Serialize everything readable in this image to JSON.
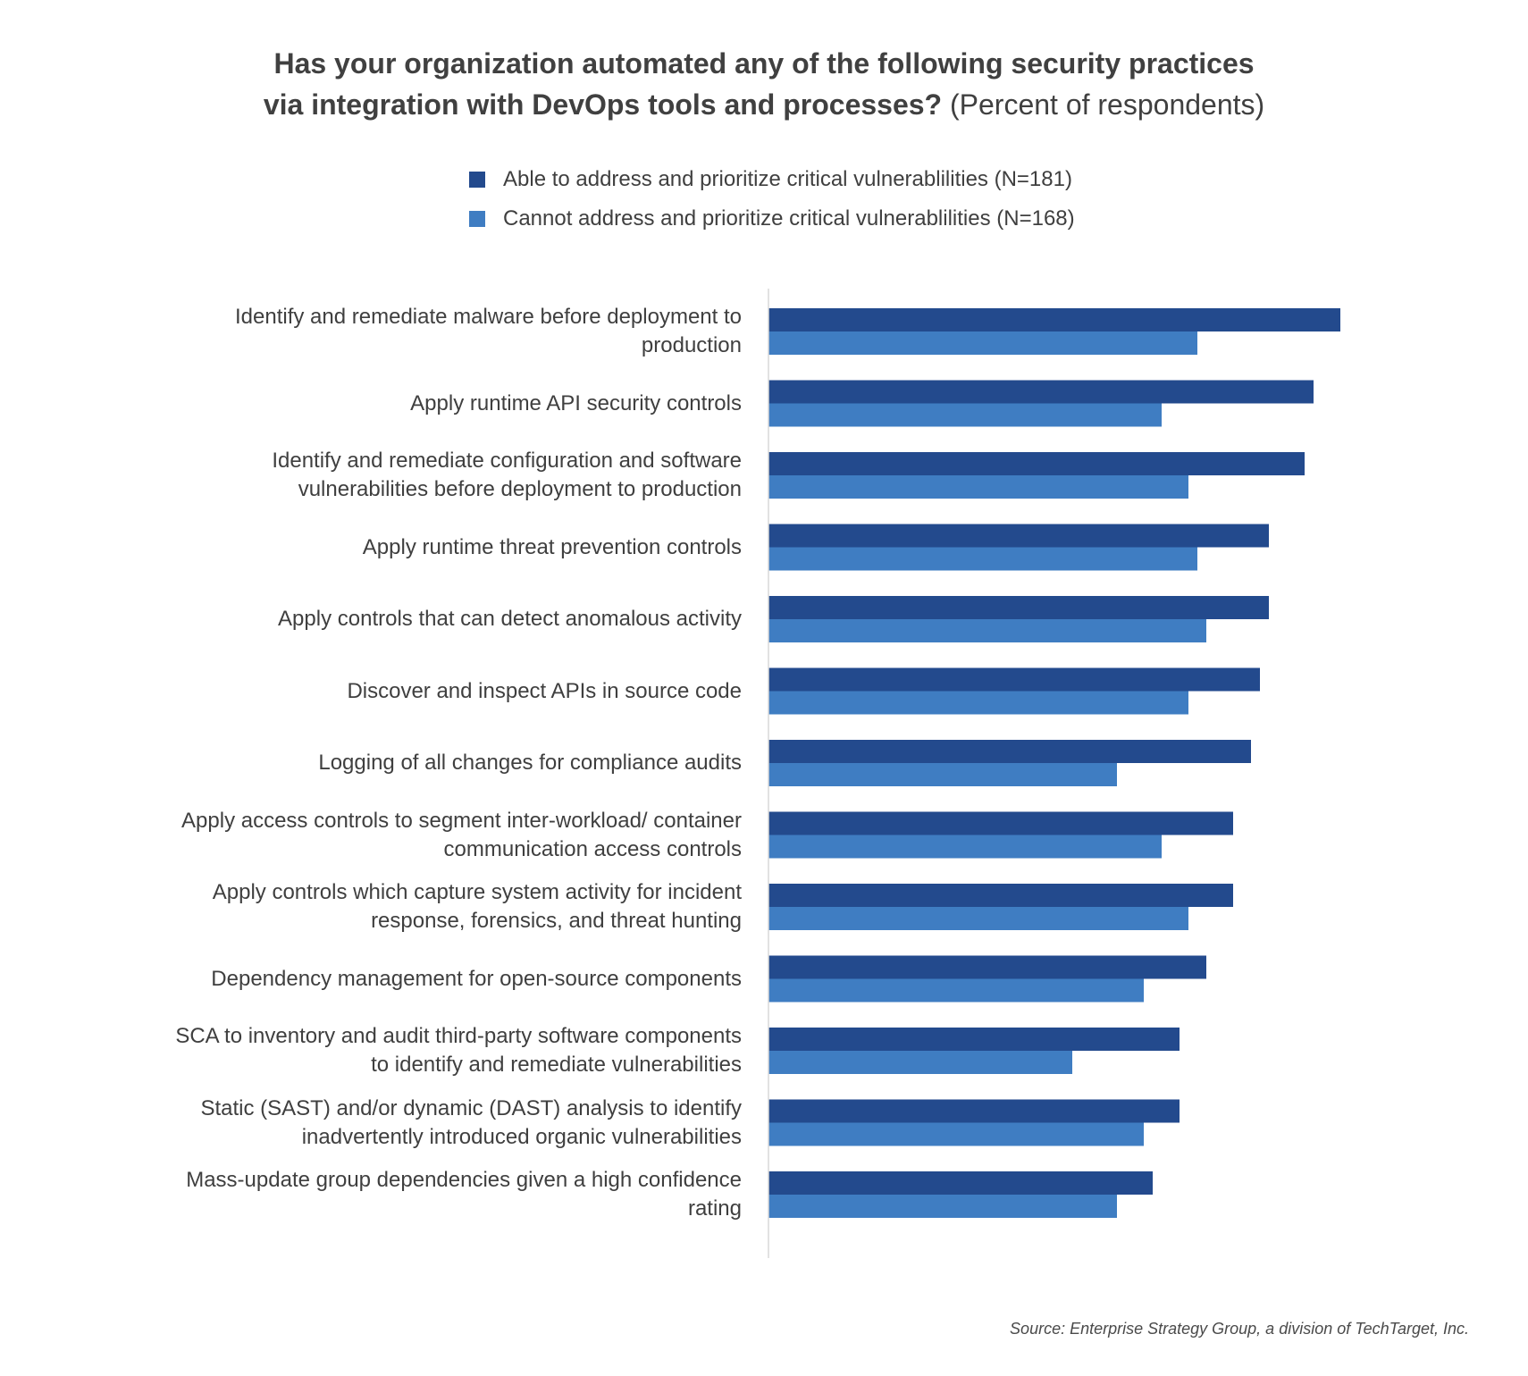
{
  "chart_data": {
    "type": "bar",
    "orientation": "horizontal",
    "title": "Has your organization automated any of the following security practices via integration with DevOps tools and processes?",
    "subtitle": "(Percent of respondents)",
    "categories": [
      "Identify and remediate malware before deployment to production",
      "Apply runtime API security controls",
      "Identify and remediate configuration and software vulnerabilities before deployment to production",
      "Apply runtime threat prevention controls",
      "Apply controls that can detect anomalous activity",
      "Discover and inspect APIs in source code",
      "Logging of all changes for compliance audits",
      "Apply access controls to segment inter-workload/ container communication access controls",
      "Apply controls which capture system activity for incident response, forensics, and threat hunting",
      "Dependency management for open-source components",
      "SCA to inventory and audit third-party software components to identify and remediate vulnerabilities",
      "Static (SAST) and/or dynamic (DAST) analysis to identify inadvertently introduced organic vulnerabilities",
      "Mass-update group dependencies given a high confidence rating"
    ],
    "series": [
      {
        "name": "Able to address and prioritize critical vulnerablilities (N=181)",
        "color": "#234a8d",
        "values": [
          64,
          61,
          60,
          56,
          56,
          55,
          54,
          52,
          52,
          49,
          46,
          46,
          43
        ]
      },
      {
        "name": "Cannot address and prioritize critical vulnerablilities (N=168)",
        "color": "#3f7dc2",
        "values": [
          48,
          44,
          47,
          48,
          49,
          47,
          39,
          44,
          47,
          42,
          34,
          42,
          39
        ]
      }
    ],
    "xlim": [
      0,
      70
    ],
    "grid": false,
    "legend": "top-center",
    "source": "Source: Enterprise Strategy Group, a division of TechTarget, Inc."
  },
  "axis_color": "#d9d9d9"
}
